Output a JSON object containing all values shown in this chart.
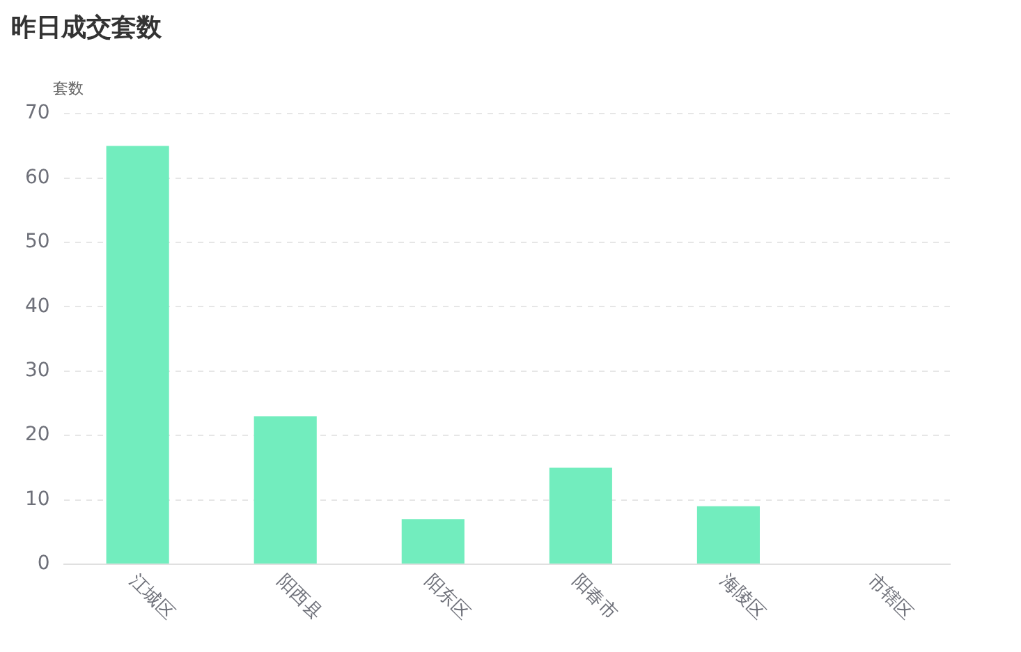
{
  "chart_data": {
    "type": "bar",
    "title": "昨日成交套数",
    "ylabel": "套数",
    "categories": [
      "江城区",
      "阳西县",
      "阳东区",
      "阳春市",
      "海陵区",
      "市辖区"
    ],
    "values": [
      65,
      23,
      7,
      15,
      9,
      0
    ],
    "color": "#72edbe",
    "ylim": [
      0,
      70
    ],
    "yticks": [
      0,
      10,
      20,
      30,
      40,
      50,
      60,
      70
    ],
    "grid": "y",
    "legend": false
  }
}
